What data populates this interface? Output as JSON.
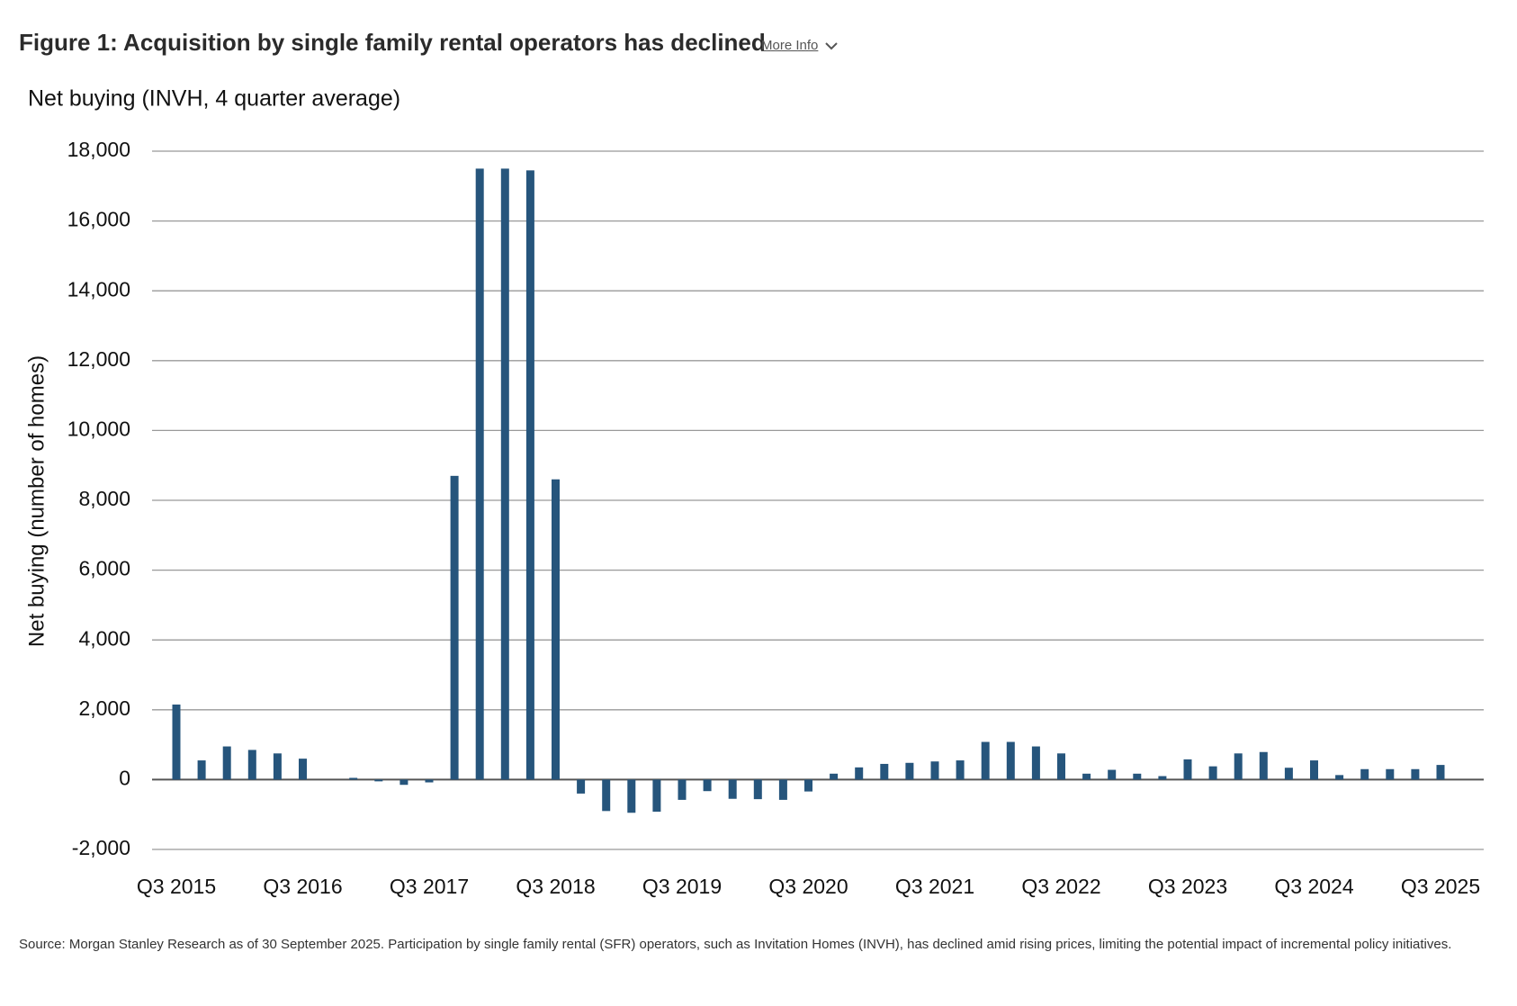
{
  "title": "Figure 1: Acquisition by single family rental operators has declined",
  "more_info": "More Info",
  "note": "Source: Morgan Stanley Research as of 30 September 2025. Participation by single family rental (SFR) operators, such as Invitation Homes (INVH), has declined amid rising prices, limiting the potential impact of incremental policy initiatives.",
  "chart_data": {
    "type": "bar",
    "subtitle": "Net buying (INVH, 4 quarter average)",
    "y_label": "Net buying (number of homes)",
    "color": "#26557c",
    "grid": true,
    "categories": [
      "Q3 2015",
      null,
      null,
      null,
      null,
      "Q3 2016",
      null,
      null,
      null,
      null,
      "Q3 2017",
      null,
      null,
      null,
      null,
      "Q3 2018",
      null,
      null,
      null,
      null,
      "Q3 2019",
      null,
      null,
      null,
      null,
      "Q3 2020",
      null,
      null,
      null,
      null,
      "Q3 2021",
      null,
      null,
      null,
      null,
      "Q3 2022",
      null,
      null,
      null,
      null,
      "Q3 2023",
      null,
      null,
      null,
      null,
      "Q3 2024",
      null,
      null,
      null,
      null,
      "Q3 2025"
    ],
    "values": [
      2150,
      550,
      950,
      850,
      750,
      600,
      0,
      50,
      -50,
      -150,
      -80,
      8700,
      17500,
      17500,
      17450,
      8600,
      -400,
      -900,
      -950,
      -920,
      -580,
      -330,
      -550,
      -560,
      -580,
      -340,
      170,
      350,
      450,
      480,
      520,
      550,
      1080,
      1080,
      950,
      750,
      170,
      280,
      170,
      100,
      580,
      380,
      750,
      790,
      340,
      550,
      130,
      300,
      300,
      300,
      420
    ],
    "ylim": [
      -2000,
      18000
    ],
    "yticks": [
      {
        "value": -2000,
        "label": "-2,000"
      },
      0,
      {
        "value": 2000,
        "label": "2,000"
      },
      {
        "value": 4000,
        "label": "4,000"
      },
      {
        "value": 6000,
        "label": "6,000"
      },
      {
        "value": 8000,
        "label": "8,000"
      },
      {
        "value": 10000,
        "label": "10,000"
      },
      {
        "value": 12000,
        "label": "12,000"
      },
      {
        "value": 14000,
        "label": "14,000"
      },
      {
        "value": 16000,
        "label": "16,000"
      },
      {
        "value": 18000,
        "label": "18,000"
      }
    ]
  }
}
